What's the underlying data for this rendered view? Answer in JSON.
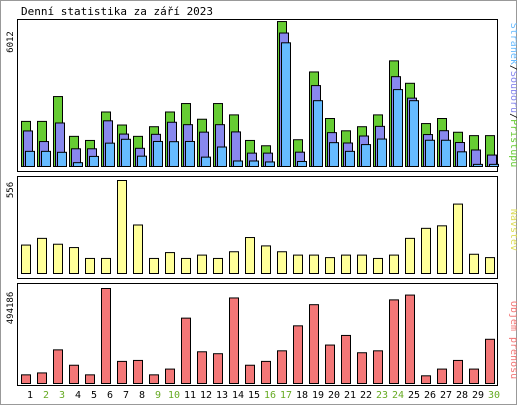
{
  "title": "Denní statistika za září 2023",
  "colors": {
    "hits": "#66cc33",
    "files": "#8888ee",
    "pages": "#66bbff",
    "visits": "#ffff99",
    "kbytes": "#f37777",
    "weekend_label": "#66aa22",
    "weekday_label": "#000000"
  },
  "chart_data": [
    {
      "type": "bar",
      "panel": "top",
      "ymax_label": "6012",
      "ylim": [
        0,
        6012
      ],
      "legend": [
        "Stránek",
        "Souborů",
        "Přístupů"
      ],
      "categories": [
        "1",
        "2",
        "3",
        "4",
        "5",
        "6",
        "7",
        "8",
        "9",
        "10",
        "11",
        "12",
        "13",
        "14",
        "15",
        "16",
        "17",
        "18",
        "19",
        "20",
        "21",
        "22",
        "23",
        "24",
        "25",
        "26",
        "27",
        "28",
        "29",
        "30"
      ],
      "series": [
        {
          "name": "Přístupů",
          "values": [
            1870,
            1870,
            2900,
            1250,
            1080,
            2260,
            1720,
            1250,
            1650,
            2260,
            2610,
            1960,
            2610,
            2140,
            1080,
            860,
            6010,
            1110,
            3920,
            1990,
            1480,
            1650,
            2140,
            4380,
            3450,
            1780,
            1990,
            1420,
            1280,
            1280
          ]
        },
        {
          "name": "Souborů",
          "values": [
            1640,
            1200,
            1970,
            900,
            900,
            2060,
            1510,
            920,
            1500,
            2000,
            1900,
            1590,
            1900,
            1600,
            720,
            720,
            5700,
            760,
            3520,
            1570,
            1140,
            1430,
            1830,
            3890,
            3000,
            1490,
            1650,
            1160,
            850,
            640
          ]
        },
        {
          "name": "Stránek",
          "values": [
            960,
            960,
            920,
            490,
            750,
            1300,
            1460,
            760,
            1370,
            1360,
            1370,
            720,
            1140,
            560,
            560,
            520,
            5460,
            540,
            3060,
            1320,
            960,
            1240,
            1470,
            3520,
            3060,
            1420,
            1420,
            940,
            420,
            420
          ]
        }
      ]
    },
    {
      "type": "bar",
      "panel": "middle",
      "ymax_label": "556",
      "ylim": [
        0,
        556
      ],
      "legend": [
        "Návštěv"
      ],
      "categories": [
        "1",
        "2",
        "3",
        "4",
        "5",
        "6",
        "7",
        "8",
        "9",
        "10",
        "11",
        "12",
        "13",
        "14",
        "15",
        "16",
        "17",
        "18",
        "19",
        "20",
        "21",
        "22",
        "23",
        "24",
        "25",
        "26",
        "27",
        "28",
        "29",
        "30"
      ],
      "series": [
        {
          "name": "Návštěv",
          "values": [
            170,
            210,
            175,
            155,
            90,
            90,
            556,
            290,
            90,
            125,
            90,
            110,
            90,
            130,
            215,
            165,
            130,
            110,
            110,
            95,
            110,
            110,
            90,
            110,
            210,
            270,
            285,
            415,
            115,
            95
          ]
        }
      ]
    },
    {
      "type": "bar",
      "panel": "bottom",
      "ymax_label": "494186",
      "ylim": [
        0,
        494186
      ],
      "legend": [
        "Objem přenosu"
      ],
      "categories": [
        "1",
        "2",
        "3",
        "4",
        "5",
        "6",
        "7",
        "8",
        "9",
        "10",
        "11",
        "12",
        "13",
        "14",
        "15",
        "16",
        "17",
        "18",
        "19",
        "20",
        "21",
        "22",
        "23",
        "24",
        "25",
        "26",
        "27",
        "28",
        "29",
        "30"
      ],
      "series": [
        {
          "name": "Objem přenosu",
          "values": [
            45000,
            55000,
            175000,
            95000,
            45000,
            494186,
            115000,
            120000,
            45000,
            75000,
            340000,
            165000,
            155000,
            445000,
            95000,
            115000,
            170000,
            300000,
            410000,
            200000,
            250000,
            160000,
            170000,
            435000,
            460000,
            40000,
            75000,
            120000,
            75000,
            230000
          ]
        }
      ]
    }
  ],
  "x_labels": [
    "1",
    "2",
    "3",
    "4",
    "5",
    "6",
    "7",
    "8",
    "9",
    "10",
    "11",
    "12",
    "13",
    "14",
    "15",
    "16",
    "17",
    "18",
    "19",
    "20",
    "21",
    "22",
    "23",
    "24",
    "25",
    "26",
    "27",
    "28",
    "29",
    "30"
  ],
  "weekend_days": [
    "2",
    "3",
    "9",
    "10",
    "16",
    "17",
    "23",
    "24",
    "30"
  ]
}
